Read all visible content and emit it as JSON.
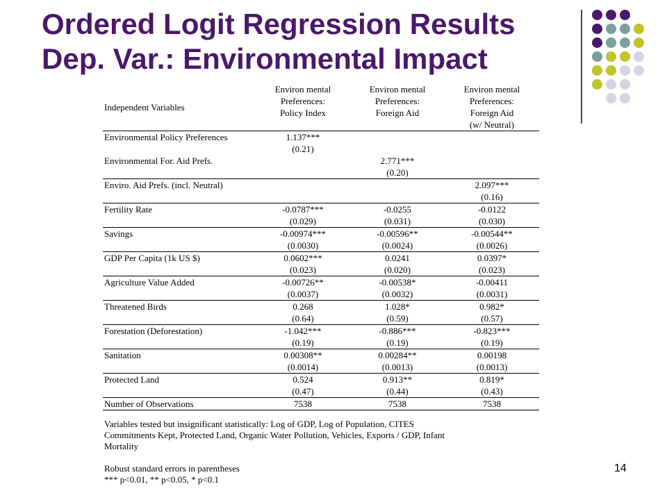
{
  "slide": {
    "title_line1": "Ordered Logit Regression Results",
    "title_line2": "Dep. Var.: Environmental Impact",
    "page_number": "14",
    "dot_colors": [
      "#4a1869",
      "#7a9ea0",
      "#c0c529",
      "#d4d4e4"
    ]
  },
  "table": {
    "header": {
      "variable": "Independent Variables",
      "col1": [
        "Environ mental",
        "Preferences:",
        "Policy Index"
      ],
      "col2": [
        "Environ mental",
        "Preferences:",
        "Foreign Aid"
      ],
      "col3": [
        "Environ mental",
        "Preferences:",
        "Foreign Aid",
        "(w/ Neutral)"
      ]
    },
    "rows": [
      {
        "name": "Environmental Policy Preferences",
        "c1": "1.137***",
        "c2": "",
        "c3": "",
        "se1": "(0.21)",
        "se2": "",
        "se3": ""
      },
      {
        "name": "Environmental For. Aid Prefs.",
        "c1": "",
        "c2": "2.771***",
        "c3": "",
        "se1": "",
        "se2": "(0.20)",
        "se3": ""
      },
      {
        "name": "Enviro. Aid Prefs. (incl. Neutral)",
        "c1": "",
        "c2": "",
        "c3": "2.097***",
        "se1": "",
        "se2": "",
        "se3": "(0.16)"
      },
      {
        "name": "Fertility Rate",
        "c1": "-0.0787***",
        "c2": "-0.0255",
        "c3": "-0.0122",
        "se1": "(0.029)",
        "se2": "(0.031)",
        "se3": "(0.030)"
      },
      {
        "name": "Savings",
        "c1": "-0.00974***",
        "c2": "-0.00596**",
        "c3": "-0.00544**",
        "se1": "(0.0030)",
        "se2": "(0.0024)",
        "se3": "(0.0026)"
      },
      {
        "name": "GDP Per Capita (1k US $)",
        "c1": "0.0602***",
        "c2": "0.0241",
        "c3": "0.0397*",
        "se1": "(0.023)",
        "se2": "(0.020)",
        "se3": "(0.023)"
      },
      {
        "name": "Agriculture Value Added",
        "c1": "-0.00726**",
        "c2": "-0.00538*",
        "c3": "-0.00411",
        "se1": "(0.0037)",
        "se2": "(0.0032)",
        "se3": "(0.0031)"
      },
      {
        "name": "Threatened Birds",
        "c1": "0.268",
        "c2": "1.028*",
        "c3": "0.982*",
        "se1": "(0.64)",
        "se2": "(0.59)",
        "se3": "(0.57)"
      },
      {
        "name": "Forestation (Deforestation)",
        "c1": "-1.042***",
        "c2": "-0.886***",
        "c3": "-0.823***",
        "se1": "(0.19)",
        "se2": "(0.19)",
        "se3": "(0.19)"
      },
      {
        "name": "Sanitation",
        "c1": "0.00308**",
        "c2": "0.00284**",
        "c3": "0.00198",
        "se1": "(0.0014)",
        "se2": "(0.0013)",
        "se3": "(0.0013)"
      },
      {
        "name": "Protected Land",
        "c1": "0.524",
        "c2": "0.913**",
        "c3": "0.819*",
        "se1": "(0.47)",
        "se2": "(0.44)",
        "se3": "(0.43)"
      }
    ],
    "observations": {
      "name": "Number of Observations",
      "c1": "7538",
      "c2": "7538",
      "c3": "7538"
    }
  },
  "notes": {
    "line1": "Variables tested but insignificant statistically: Log of GDP, Log of Population, CITES",
    "line2": "Commitments Kept, Protected Land, Organic Water Pollution, Vehicles, Exports / GDP, Infant",
    "line3": "Mortality",
    "line4": "Robust standard errors in parentheses",
    "line5": "*** p<0.01, ** p<0.05, * p<0.1"
  }
}
